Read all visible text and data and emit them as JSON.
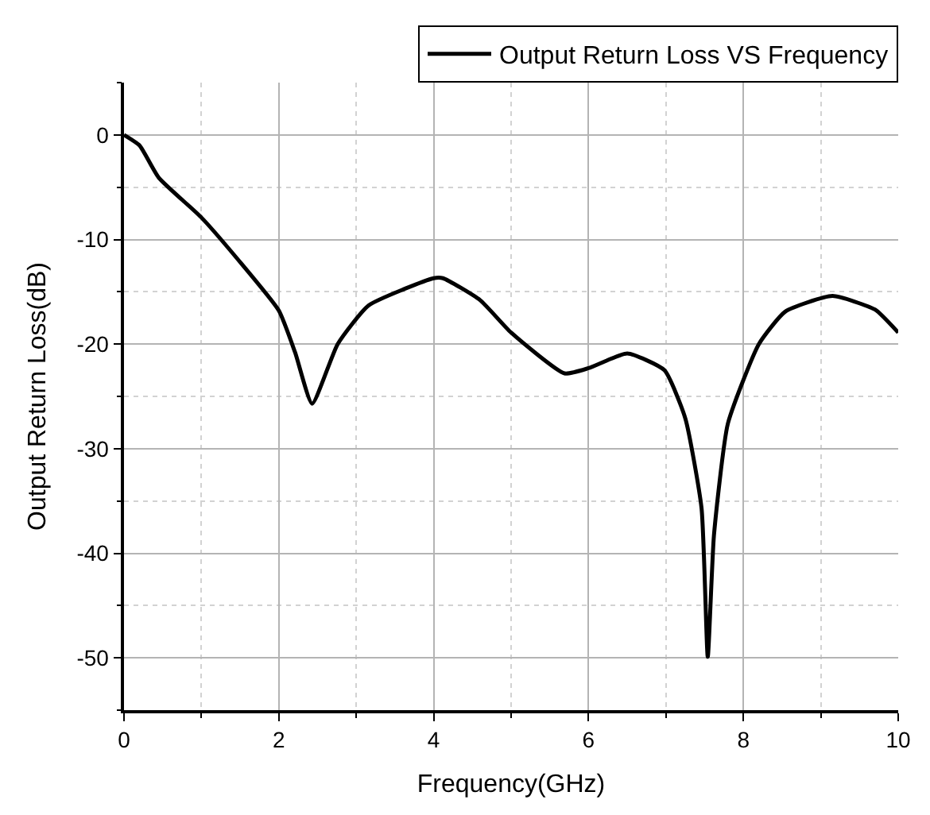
{
  "chart_data": {
    "type": "line",
    "xlabel": "Frequency(GHz)",
    "ylabel": "Output Return Loss(dB)",
    "xlim": [
      0,
      10
    ],
    "xticks": [
      0,
      2,
      4,
      6,
      8,
      10
    ],
    "ylim": [
      -55,
      5
    ],
    "yticks": [
      -50,
      -40,
      -30,
      -20,
      -10,
      0
    ],
    "grid": true,
    "legend": "top right",
    "line_style": "solid",
    "marker": "none",
    "series": [
      {
        "name": "Output Return Loss VS Frequency",
        "color": "#000000",
        "x": [
          0,
          0.2,
          0.45,
          1.0,
          1.47,
          2.0,
          2.21,
          2.43,
          2.76,
          3.16,
          4.0,
          4.12,
          4.6,
          5.0,
          5.69,
          6.0,
          6.5,
          6.98,
          7.25,
          7.46,
          7.54,
          7.62,
          7.8,
          8.2,
          8.54,
          9.15,
          9.7,
          10.0
        ],
        "values": [
          0,
          -1.0,
          -4.1,
          -7.9,
          -11.9,
          -16.8,
          -20.8,
          -25.7,
          -20.0,
          -16.3,
          -13.7,
          -13.7,
          -15.8,
          -18.9,
          -22.8,
          -22.3,
          -20.9,
          -22.5,
          -27.1,
          -35.7,
          -49.9,
          -38.3,
          -27.6,
          -20.0,
          -16.9,
          -15.4,
          -16.7,
          -18.9
        ]
      }
    ]
  }
}
